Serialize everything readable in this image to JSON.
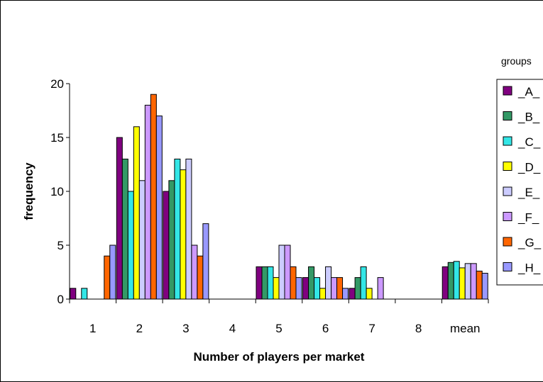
{
  "chart_data": {
    "type": "bar",
    "xlabel": "Number of players per market",
    "ylabel": "frequency",
    "ylim": [
      0,
      20
    ],
    "yticks": [
      0,
      5,
      10,
      15,
      20
    ],
    "grid": false,
    "legend_position": "right",
    "legend_title": "groups",
    "categories": [
      "1",
      "2",
      "3",
      "4",
      "5",
      "6",
      "7",
      "8",
      "mean"
    ],
    "series": [
      {
        "name": "_A_",
        "color": "#800080",
        "values": [
          1,
          15,
          10,
          0,
          3,
          2,
          1,
          0,
          3.0
        ]
      },
      {
        "name": "_B_",
        "color": "#339966",
        "values": [
          0,
          13,
          11,
          0,
          3,
          3,
          2,
          0,
          3.4
        ]
      },
      {
        "name": "_C_",
        "color": "#33e6e6",
        "values": [
          1,
          10,
          13,
          0,
          3,
          2,
          3,
          0,
          3.5
        ]
      },
      {
        "name": "_D_",
        "color": "#ffff00",
        "values": [
          0,
          16,
          12,
          0,
          2,
          1,
          1,
          0,
          2.9
        ]
      },
      {
        "name": "_E_",
        "color": "#ccccff",
        "values": [
          0,
          11,
          13,
          0,
          5,
          3,
          0,
          0,
          3.3
        ]
      },
      {
        "name": "_F_",
        "color": "#cc99ff",
        "values": [
          0,
          18,
          5,
          0,
          5,
          2,
          2,
          0,
          3.3
        ]
      },
      {
        "name": "_G_",
        "color": "#ff6600",
        "values": [
          4,
          19,
          4,
          0,
          3,
          2,
          0,
          0,
          2.6
        ]
      },
      {
        "name": "_H_",
        "color": "#9999ff",
        "values": [
          5,
          17,
          7,
          0,
          2,
          1,
          0,
          0,
          2.4
        ]
      }
    ]
  }
}
